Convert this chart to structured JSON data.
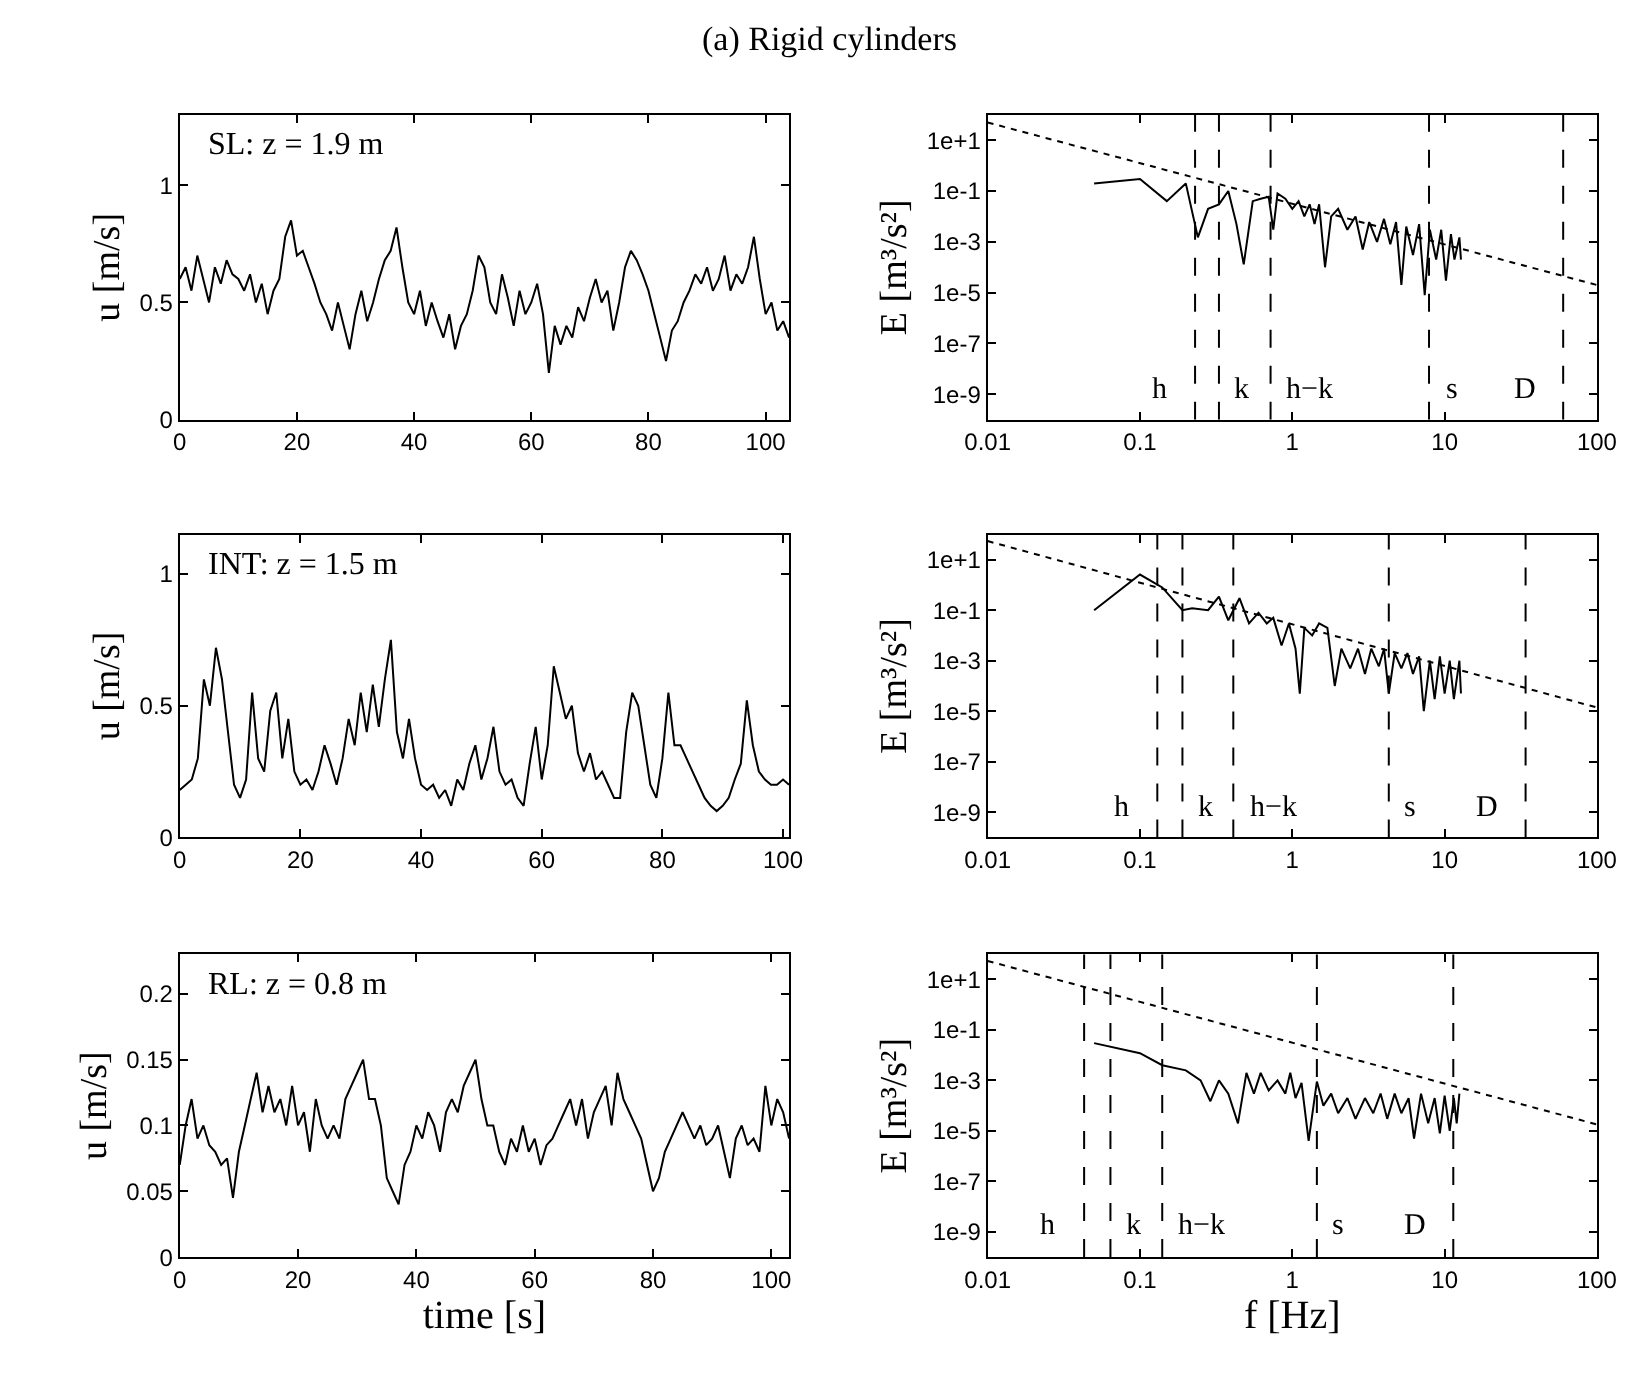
{
  "chart_data": [
    {
      "type": "line",
      "title": "(a) Rigid cylinders",
      "ylabel": "u [m/s]",
      "annotations": [
        "SL: z = 1.9 m"
      ],
      "xlim": [
        0,
        104
      ],
      "ylim": [
        0,
        1.3
      ],
      "xticks": [
        0,
        20,
        40,
        60,
        80,
        100
      ],
      "yticks": [
        0,
        0.5,
        1
      ],
      "marker": "none",
      "series": [
        {
          "color": "#000000",
          "line_style": "solid",
          "x": [
            0,
            1,
            2,
            3,
            4,
            5,
            6,
            7,
            8,
            9,
            10,
            11,
            12,
            13,
            14,
            15,
            16,
            17,
            18,
            19,
            20,
            21,
            22,
            23,
            24,
            25,
            26,
            27,
            28,
            29,
            30,
            31,
            32,
            33,
            34,
            35,
            36,
            37,
            38,
            39,
            40,
            41,
            42,
            43,
            44,
            45,
            46,
            47,
            48,
            49,
            50,
            51,
            52,
            53,
            54,
            55,
            56,
            57,
            58,
            59,
            60,
            61,
            62,
            63,
            64,
            65,
            66,
            67,
            68,
            69,
            70,
            71,
            72,
            73,
            74,
            75,
            76,
            77,
            78,
            79,
            80,
            81,
            82,
            83,
            84,
            85,
            86,
            87,
            88,
            89,
            90,
            91,
            92,
            93,
            94,
            95,
            96,
            97,
            98,
            99,
            100,
            101,
            102,
            103,
            104
          ],
          "values": [
            0.6,
            0.65,
            0.55,
            0.7,
            0.6,
            0.5,
            0.65,
            0.58,
            0.68,
            0.62,
            0.6,
            0.55,
            0.62,
            0.5,
            0.58,
            0.45,
            0.55,
            0.6,
            0.78,
            0.85,
            0.7,
            0.72,
            0.65,
            0.58,
            0.5,
            0.45,
            0.38,
            0.5,
            0.4,
            0.3,
            0.45,
            0.55,
            0.42,
            0.5,
            0.6,
            0.68,
            0.72,
            0.82,
            0.65,
            0.5,
            0.45,
            0.55,
            0.4,
            0.5,
            0.42,
            0.35,
            0.45,
            0.3,
            0.4,
            0.45,
            0.55,
            0.7,
            0.65,
            0.5,
            0.45,
            0.62,
            0.52,
            0.4,
            0.55,
            0.45,
            0.5,
            0.58,
            0.45,
            0.2,
            0.4,
            0.32,
            0.4,
            0.35,
            0.48,
            0.42,
            0.52,
            0.6,
            0.5,
            0.55,
            0.38,
            0.5,
            0.65,
            0.72,
            0.68,
            0.62,
            0.55,
            0.45,
            0.35,
            0.25,
            0.38,
            0.42,
            0.5,
            0.55,
            0.62,
            0.58,
            0.65,
            0.55,
            0.6,
            0.7,
            0.55,
            0.62,
            0.58,
            0.65,
            0.78,
            0.6,
            0.45,
            0.5,
            0.38,
            0.42,
            0.35
          ]
        }
      ]
    },
    {
      "type": "line",
      "ylabel": "E [m³/s²]",
      "log": "xy",
      "xlim": [
        0.01,
        100
      ],
      "ylim": [
        1e-10,
        100
      ],
      "xticks": [
        0.01,
        0.1,
        1,
        10,
        100
      ],
      "yticks": [
        {
          "value": 10,
          "label": "1e+1"
        },
        {
          "value": 0.1,
          "label": "1e-1"
        },
        {
          "value": 0.001,
          "label": "1e-3"
        },
        {
          "value": 1e-05,
          "label": "1e-5"
        },
        {
          "value": 1e-07,
          "label": "1e-7"
        },
        {
          "value": 1e-09,
          "label": "1e-9"
        }
      ],
      "marker": "none",
      "ref_lines": [
        {
          "axis": "x",
          "value": 0.23,
          "color": "#000000",
          "line_style": "dashed"
        },
        {
          "axis": "x",
          "value": 0.33,
          "color": "#000000",
          "line_style": "dashed"
        },
        {
          "axis": "x",
          "value": 0.72,
          "color": "#000000",
          "line_style": "dashed"
        },
        {
          "axis": "x",
          "value": 7.9,
          "color": "#000000",
          "line_style": "dashed"
        },
        {
          "axis": "x",
          "value": 60,
          "color": "#000000",
          "line_style": "dashed"
        }
      ],
      "annotations": [
        "h",
        "k",
        "h−k",
        "s",
        "D"
      ],
      "series": [
        {
          "color": "#000000",
          "line_style": "solid",
          "x": [
            0.05,
            0.1,
            0.15,
            0.2,
            0.24,
            0.28,
            0.33,
            0.38,
            0.43,
            0.48,
            0.55,
            0.62,
            0.7,
            0.75,
            0.8,
            0.9,
            1.0,
            1.1,
            1.2,
            1.3,
            1.4,
            1.5,
            1.64,
            1.8,
            2.0,
            2.3,
            2.6,
            2.9,
            3.2,
            3.6,
            4.0,
            4.4,
            4.8,
            5.2,
            5.6,
            6.2,
            6.8,
            7.4,
            8.0,
            8.8,
            9.5,
            10.2,
            11.0,
            11.6,
            12.5,
            12.8
          ],
          "values": [
            0.2,
            0.3,
            0.04,
            0.2,
            0.0015,
            0.02,
            0.03,
            0.1,
            0.005,
            0.00013,
            0.04,
            0.05,
            0.06,
            0.003,
            0.08,
            0.05,
            0.02,
            0.04,
            0.01,
            0.03,
            0.005,
            0.03,
            0.0001,
            0.01,
            0.02,
            0.003,
            0.01,
            0.0005,
            0.006,
            0.001,
            0.008,
            0.0008,
            0.006,
            2e-05,
            0.004,
            0.0003,
            0.005,
            8e-06,
            0.003,
            0.0002,
            0.003,
            3e-05,
            0.002,
            0.0002,
            0.0015,
            0.0002
          ]
        },
        {
          "color": "#000000",
          "line_style": "dotted",
          "x": [
            0.01,
            100
          ],
          "values": [
            50,
            2e-05
          ]
        }
      ]
    },
    {
      "type": "line",
      "ylabel": "u [m/s]",
      "annotations": [
        "INT: z = 1.5 m"
      ],
      "xlim": [
        0,
        101
      ],
      "ylim": [
        0,
        1.15
      ],
      "xticks": [
        0,
        20,
        40,
        60,
        80,
        100
      ],
      "yticks": [
        0,
        0.5,
        1
      ],
      "marker": "none",
      "series": [
        {
          "color": "#000000",
          "line_style": "solid",
          "x": [
            0,
            1,
            2,
            3,
            4,
            5,
            6,
            7,
            8,
            9,
            10,
            11,
            12,
            13,
            14,
            15,
            16,
            17,
            18,
            19,
            20,
            21,
            22,
            23,
            24,
            25,
            26,
            27,
            28,
            29,
            30,
            31,
            32,
            33,
            34,
            35,
            36,
            37,
            38,
            39,
            40,
            41,
            42,
            43,
            44,
            45,
            46,
            47,
            48,
            49,
            50,
            51,
            52,
            53,
            54,
            55,
            56,
            57,
            58,
            59,
            60,
            61,
            62,
            63,
            64,
            65,
            66,
            67,
            68,
            69,
            70,
            71,
            72,
            73,
            74,
            75,
            76,
            77,
            78,
            79,
            80,
            81,
            82,
            83,
            84,
            85,
            86,
            87,
            88,
            89,
            90,
            91,
            92,
            93,
            94,
            95,
            96,
            97,
            98,
            99,
            100,
            101
          ],
          "values": [
            0.18,
            0.2,
            0.22,
            0.3,
            0.6,
            0.5,
            0.72,
            0.6,
            0.4,
            0.2,
            0.15,
            0.22,
            0.55,
            0.3,
            0.25,
            0.48,
            0.55,
            0.3,
            0.45,
            0.25,
            0.2,
            0.22,
            0.18,
            0.25,
            0.35,
            0.28,
            0.2,
            0.3,
            0.45,
            0.35,
            0.55,
            0.4,
            0.58,
            0.42,
            0.6,
            0.75,
            0.4,
            0.3,
            0.45,
            0.3,
            0.2,
            0.18,
            0.2,
            0.15,
            0.18,
            0.12,
            0.22,
            0.18,
            0.28,
            0.35,
            0.22,
            0.3,
            0.42,
            0.25,
            0.2,
            0.22,
            0.15,
            0.12,
            0.28,
            0.42,
            0.22,
            0.35,
            0.65,
            0.55,
            0.45,
            0.5,
            0.32,
            0.25,
            0.32,
            0.22,
            0.25,
            0.2,
            0.15,
            0.15,
            0.4,
            0.55,
            0.5,
            0.35,
            0.2,
            0.15,
            0.3,
            0.55,
            0.35,
            0.35,
            0.3,
            0.25,
            0.2,
            0.15,
            0.12,
            0.1,
            0.12,
            0.15,
            0.22,
            0.28,
            0.52,
            0.35,
            0.25,
            0.22,
            0.2,
            0.2,
            0.22,
            0.2
          ]
        }
      ]
    },
    {
      "type": "line",
      "ylabel": "E [m³/s²]",
      "log": "xy",
      "xlim": [
        0.01,
        100
      ],
      "ylim": [
        1e-10,
        100
      ],
      "xticks": [
        0.01,
        0.1,
        1,
        10,
        100
      ],
      "yticks": [
        {
          "value": 10,
          "label": "1e+1"
        },
        {
          "value": 0.1,
          "label": "1e-1"
        },
        {
          "value": 0.001,
          "label": "1e-3"
        },
        {
          "value": 1e-05,
          "label": "1e-5"
        },
        {
          "value": 1e-07,
          "label": "1e-7"
        },
        {
          "value": 1e-09,
          "label": "1e-9"
        }
      ],
      "marker": "none",
      "ref_lines": [
        {
          "axis": "x",
          "value": 0.13,
          "color": "#000000",
          "line_style": "dashed"
        },
        {
          "axis": "x",
          "value": 0.19,
          "color": "#000000",
          "line_style": "dashed"
        },
        {
          "axis": "x",
          "value": 0.41,
          "color": "#000000",
          "line_style": "dashed"
        },
        {
          "axis": "x",
          "value": 4.3,
          "color": "#000000",
          "line_style": "dashed"
        },
        {
          "axis": "x",
          "value": 34,
          "color": "#000000",
          "line_style": "dashed"
        }
      ],
      "annotations": [
        "h",
        "k",
        "h−k",
        "s",
        "D"
      ],
      "series": [
        {
          "color": "#000000",
          "line_style": "solid",
          "x": [
            0.05,
            0.1,
            0.14,
            0.19,
            0.22,
            0.28,
            0.33,
            0.38,
            0.45,
            0.52,
            0.6,
            0.68,
            0.75,
            0.85,
            0.95,
            1.05,
            1.12,
            1.2,
            1.35,
            1.5,
            1.7,
            1.9,
            2.1,
            2.4,
            2.7,
            3.0,
            3.3,
            3.7,
            4.0,
            4.3,
            4.7,
            5.2,
            5.7,
            6.2,
            6.8,
            7.3,
            8.0,
            8.6,
            9.3,
            10.0,
            10.8,
            11.5,
            12.5,
            12.8
          ],
          "values": [
            0.1,
            2.6,
            0.8,
            0.1,
            0.12,
            0.1,
            0.35,
            0.04,
            0.3,
            0.03,
            0.08,
            0.03,
            0.05,
            0.004,
            0.03,
            0.003,
            5e-05,
            0.02,
            0.01,
            0.03,
            0.02,
            0.0001,
            0.003,
            0.0005,
            0.003,
            0.0003,
            0.003,
            0.0006,
            0.003,
            5e-05,
            0.002,
            0.0005,
            0.002,
            0.0003,
            0.0015,
            1e-05,
            0.001,
            3e-05,
            0.0015,
            5e-05,
            0.001,
            3e-05,
            0.001,
            5e-05
          ]
        },
        {
          "color": "#000000",
          "line_style": "dotted",
          "x": [
            0.01,
            100
          ],
          "values": [
            55,
            1.4e-05
          ]
        }
      ]
    },
    {
      "type": "line",
      "ylabel": "u [m/s]",
      "xlabel": "time [s]",
      "annotations": [
        "RL: z = 0.8 m"
      ],
      "xlim": [
        0,
        103
      ],
      "ylim": [
        0,
        0.23
      ],
      "xticks": [
        0,
        20,
        40,
        60,
        80,
        100
      ],
      "yticks": [
        0,
        0.05,
        0.1,
        0.15,
        0.2
      ],
      "marker": "none",
      "series": [
        {
          "color": "#000000",
          "line_style": "solid",
          "x": [
            0,
            1,
            2,
            3,
            4,
            5,
            6,
            7,
            8,
            9,
            10,
            11,
            12,
            13,
            14,
            15,
            16,
            17,
            18,
            19,
            20,
            21,
            22,
            23,
            24,
            25,
            26,
            27,
            28,
            29,
            30,
            31,
            32,
            33,
            34,
            35,
            36,
            37,
            38,
            39,
            40,
            41,
            42,
            43,
            44,
            45,
            46,
            47,
            48,
            49,
            50,
            51,
            52,
            53,
            54,
            55,
            56,
            57,
            58,
            59,
            60,
            61,
            62,
            63,
            64,
            65,
            66,
            67,
            68,
            69,
            70,
            71,
            72,
            73,
            74,
            75,
            76,
            77,
            78,
            79,
            80,
            81,
            82,
            83,
            84,
            85,
            86,
            87,
            88,
            89,
            90,
            91,
            92,
            93,
            94,
            95,
            96,
            97,
            98,
            99,
            100,
            101,
            102,
            103
          ],
          "values": [
            0.07,
            0.1,
            0.12,
            0.09,
            0.1,
            0.085,
            0.08,
            0.07,
            0.075,
            0.045,
            0.08,
            0.1,
            0.12,
            0.14,
            0.11,
            0.13,
            0.11,
            0.12,
            0.1,
            0.13,
            0.1,
            0.11,
            0.08,
            0.12,
            0.1,
            0.09,
            0.1,
            0.09,
            0.12,
            0.13,
            0.14,
            0.15,
            0.12,
            0.12,
            0.1,
            0.06,
            0.05,
            0.04,
            0.07,
            0.08,
            0.1,
            0.09,
            0.11,
            0.1,
            0.08,
            0.11,
            0.12,
            0.11,
            0.13,
            0.14,
            0.15,
            0.12,
            0.1,
            0.1,
            0.08,
            0.07,
            0.09,
            0.08,
            0.1,
            0.08,
            0.09,
            0.07,
            0.085,
            0.09,
            0.1,
            0.11,
            0.12,
            0.1,
            0.12,
            0.09,
            0.11,
            0.12,
            0.13,
            0.1,
            0.14,
            0.12,
            0.11,
            0.1,
            0.09,
            0.07,
            0.05,
            0.06,
            0.08,
            0.09,
            0.1,
            0.11,
            0.1,
            0.09,
            0.1,
            0.085,
            0.09,
            0.1,
            0.08,
            0.06,
            0.09,
            0.1,
            0.085,
            0.09,
            0.08,
            0.13,
            0.1,
            0.12,
            0.11,
            0.09
          ]
        }
      ]
    },
    {
      "type": "line",
      "ylabel": "E [m³/s²]",
      "xlabel": "f [Hz]",
      "log": "xy",
      "xlim": [
        0.01,
        100
      ],
      "ylim": [
        1e-10,
        100
      ],
      "xticks": [
        0.01,
        0.1,
        1,
        10,
        100
      ],
      "yticks": [
        {
          "value": 10,
          "label": "1e+1"
        },
        {
          "value": 0.1,
          "label": "1e-1"
        },
        {
          "value": 0.001,
          "label": "1e-3"
        },
        {
          "value": 1e-05,
          "label": "1e-5"
        },
        {
          "value": 1e-07,
          "label": "1e-7"
        },
        {
          "value": 1e-09,
          "label": "1e-9"
        }
      ],
      "marker": "none",
      "ref_lines": [
        {
          "axis": "x",
          "value": 0.043,
          "color": "#000000",
          "line_style": "dashed"
        },
        {
          "axis": "x",
          "value": 0.064,
          "color": "#000000",
          "line_style": "dashed"
        },
        {
          "axis": "x",
          "value": 0.14,
          "color": "#000000",
          "line_style": "dashed"
        },
        {
          "axis": "x",
          "value": 1.45,
          "color": "#000000",
          "line_style": "dashed"
        },
        {
          "axis": "x",
          "value": 11.4,
          "color": "#000000",
          "line_style": "dashed"
        }
      ],
      "annotations": [
        "h",
        "k",
        "h−k",
        "s",
        "D"
      ],
      "series": [
        {
          "color": "#000000",
          "line_style": "solid",
          "x": [
            0.05,
            0.1,
            0.14,
            0.2,
            0.25,
            0.29,
            0.33,
            0.38,
            0.44,
            0.5,
            0.56,
            0.62,
            0.7,
            0.8,
            0.9,
            0.97,
            1.05,
            1.15,
            1.28,
            1.45,
            1.6,
            1.8,
            2.0,
            2.3,
            2.6,
            3.0,
            3.4,
            3.8,
            4.2,
            4.7,
            5.2,
            5.8,
            6.3,
            7.0,
            7.8,
            8.6,
            9.3,
            10.0,
            10.8,
            11.5,
            12.0,
            12.5
          ],
          "values": [
            0.03,
            0.012,
            0.004,
            0.0025,
            0.001,
            0.00015,
            0.001,
            0.0003,
            2e-05,
            0.002,
            0.0003,
            0.002,
            0.0004,
            0.001,
            0.0003,
            0.002,
            0.0002,
            0.0008,
            4e-06,
            0.0009,
            0.0001,
            0.0003,
            5e-05,
            0.0002,
            3e-05,
            0.0002,
            5e-05,
            0.0003,
            3e-05,
            0.0003,
            5e-05,
            0.0002,
            5e-06,
            0.0003,
            2e-05,
            0.0002,
            8e-06,
            0.00025,
            1e-05,
            0.0002,
            2e-05,
            0.0003
          ]
        },
        {
          "color": "#000000",
          "line_style": "dotted",
          "x": [
            0.01,
            100
          ],
          "values": [
            54,
            1.8e-05
          ]
        }
      ]
    }
  ]
}
